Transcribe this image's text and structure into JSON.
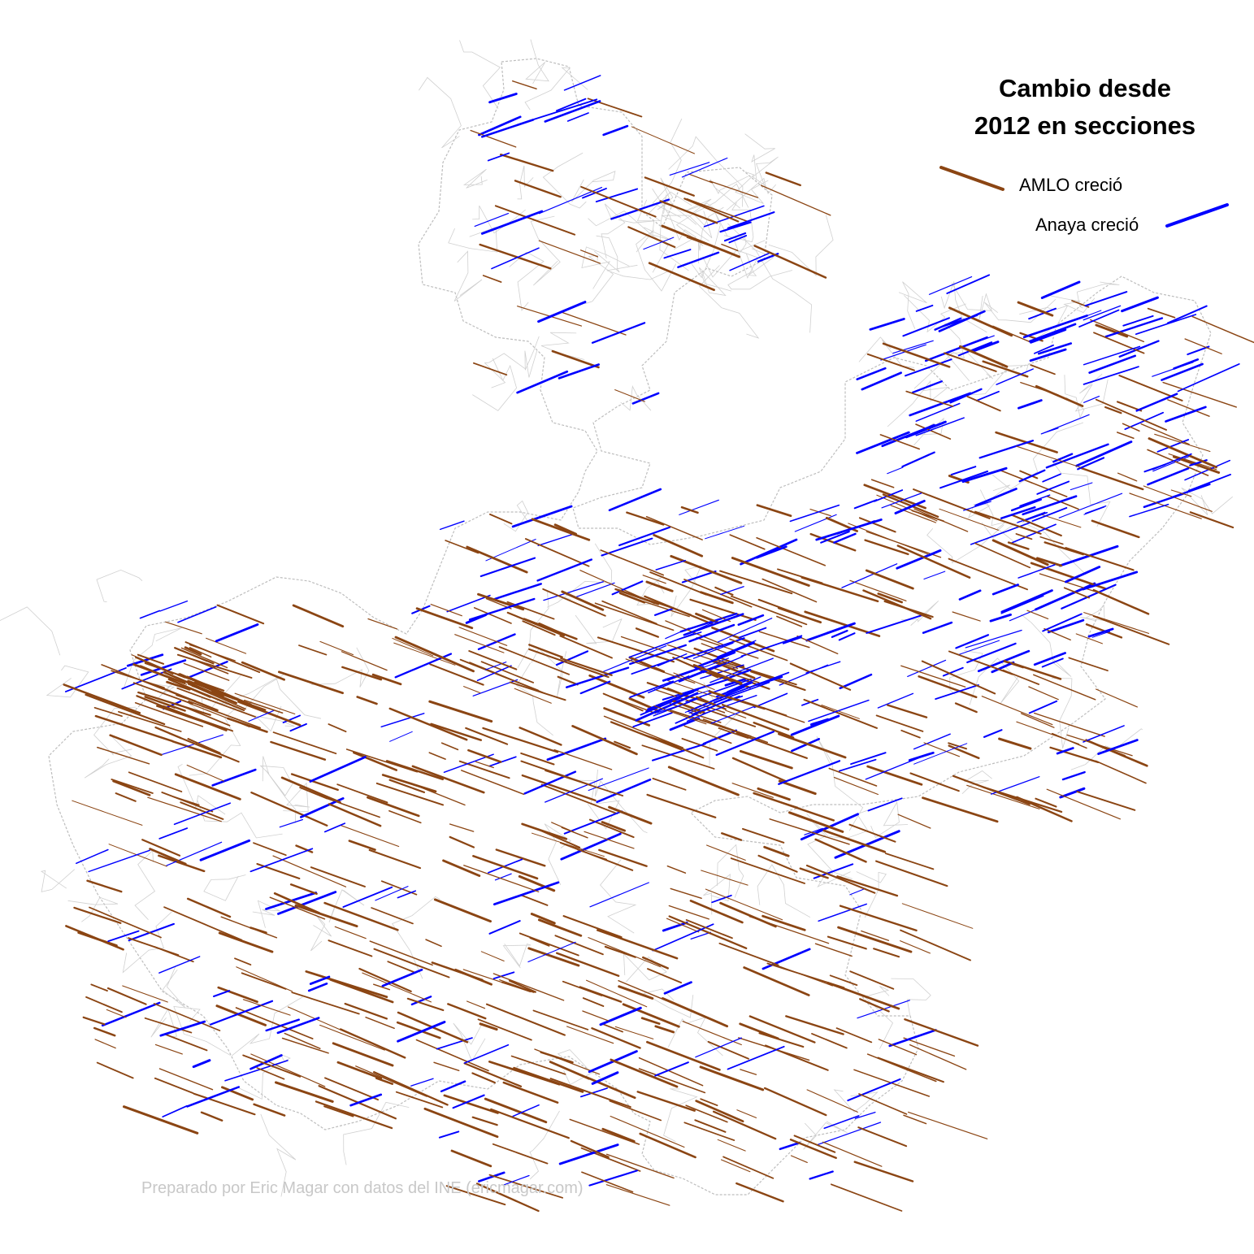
{
  "title_lines": [
    "Cambio desde",
    "2012 en secciones"
  ],
  "legend": [
    {
      "label": "AMLO creció",
      "color": "#8B4513"
    },
    {
      "label": "Anaya creció",
      "color": "#0000FF"
    }
  ],
  "credit": "Preparado por Eric Magar con datos del INE (ericmagar.com)",
  "colors": {
    "amlo": "#8B4513",
    "anaya": "#0000FF",
    "boundary": "#bdbdbd",
    "background": "#ffffff"
  },
  "map": {
    "type": "vector-arrow choropleth",
    "region": "Jalisco",
    "unit": "secciones electorales"
  }
}
